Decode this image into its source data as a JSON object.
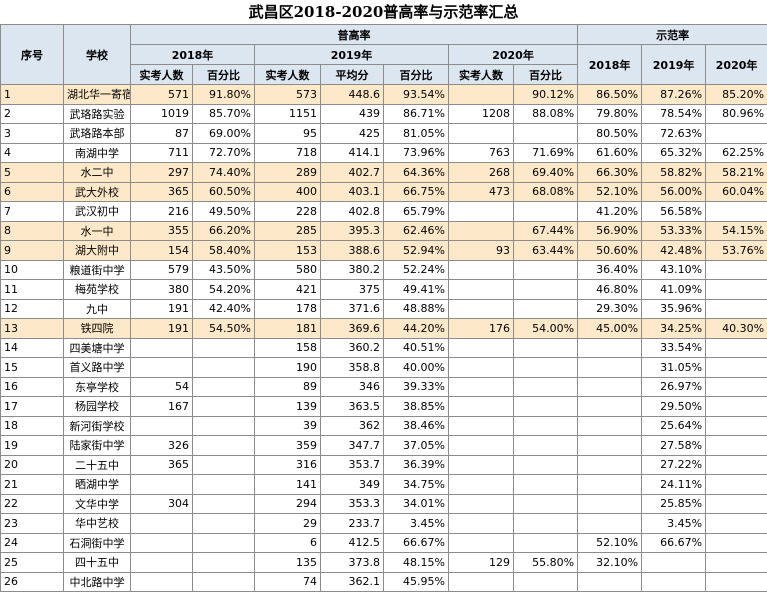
{
  "title": "武昌区2018-2020普高率与示范率汇总",
  "header": {
    "seq": "序号",
    "school": "学校",
    "group1": "普高率",
    "group2": "示范率",
    "years": [
      "2018年",
      "2019年",
      "2020年"
    ],
    "demo_years": [
      "2018年",
      "2019年",
      "2020年"
    ],
    "sub": [
      "实考人数",
      "百分比",
      "实考人数",
      "平均分",
      "百分比",
      "实考人数",
      "百分比"
    ]
  },
  "table": {
    "highlight_color": "#fde9c9",
    "highlight_rows": [
      0,
      4,
      5,
      7,
      8,
      12
    ],
    "rows": [
      [
        "1",
        "湖北华一寄宿",
        "571",
        "91.80%",
        "573",
        "448.6",
        "93.54%",
        null,
        "90.12%",
        "86.50%",
        "87.26%",
        "85.20%"
      ],
      [
        "2",
        "武珞路实验",
        "1019",
        "85.70%",
        "1151",
        "439",
        "86.71%",
        "1208",
        "88.08%",
        "79.80%",
        "78.54%",
        "80.96%"
      ],
      [
        "3",
        "武珞路本部",
        "87",
        "69.00%",
        "95",
        "425",
        "81.05%",
        null,
        null,
        "80.50%",
        "72.63%",
        null
      ],
      [
        "4",
        "南湖中学",
        "711",
        "72.70%",
        "718",
        "414.1",
        "73.96%",
        "763",
        "71.69%",
        "61.60%",
        "65.32%",
        "62.25%"
      ],
      [
        "5",
        "水二中",
        "297",
        "74.40%",
        "289",
        "402.7",
        "64.36%",
        "268",
        "69.40%",
        "66.30%",
        "58.82%",
        "58.21%"
      ],
      [
        "6",
        "武大外校",
        "365",
        "60.50%",
        "400",
        "403.1",
        "66.75%",
        "473",
        "68.08%",
        "52.10%",
        "56.00%",
        "60.04%"
      ],
      [
        "7",
        "武汉初中",
        "216",
        "49.50%",
        "228",
        "402.8",
        "65.79%",
        null,
        null,
        "41.20%",
        "56.58%",
        null
      ],
      [
        "8",
        "水一中",
        "355",
        "66.20%",
        "285",
        "395.3",
        "62.46%",
        null,
        "67.44%",
        "56.90%",
        "53.33%",
        "54.15%"
      ],
      [
        "9",
        "湖大附中",
        "154",
        "58.40%",
        "153",
        "388.6",
        "52.94%",
        "93",
        "63.44%",
        "50.60%",
        "42.48%",
        "53.76%"
      ],
      [
        "10",
        "粮道街中学",
        "579",
        "43.50%",
        "580",
        "380.2",
        "52.24%",
        null,
        null,
        "36.40%",
        "43.10%",
        null
      ],
      [
        "11",
        "梅苑学校",
        "380",
        "54.20%",
        "421",
        "375",
        "49.41%",
        null,
        null,
        "46.80%",
        "41.09%",
        null
      ],
      [
        "12",
        "九中",
        "191",
        "42.40%",
        "178",
        "371.6",
        "48.88%",
        null,
        null,
        "29.30%",
        "35.96%",
        null
      ],
      [
        "13",
        "铁四院",
        "191",
        "54.50%",
        "181",
        "369.6",
        "44.20%",
        "176",
        "54.00%",
        "45.00%",
        "34.25%",
        "40.30%"
      ],
      [
        "14",
        "四美塘中学",
        null,
        null,
        "158",
        "360.2",
        "40.51%",
        null,
        null,
        null,
        "33.54%",
        null
      ],
      [
        "15",
        "首义路中学",
        null,
        null,
        "190",
        "358.8",
        "40.00%",
        null,
        null,
        null,
        "31.05%",
        null
      ],
      [
        "16",
        "东亭学校",
        "54",
        null,
        "89",
        "346",
        "39.33%",
        null,
        null,
        null,
        "26.97%",
        null
      ],
      [
        "17",
        "杨园学校",
        "167",
        null,
        "139",
        "363.5",
        "38.85%",
        null,
        null,
        null,
        "29.50%",
        null
      ],
      [
        "18",
        "新河街学校",
        null,
        null,
        "39",
        "362",
        "38.46%",
        null,
        null,
        null,
        "25.64%",
        null
      ],
      [
        "19",
        "陆家街中学",
        "326",
        null,
        "359",
        "347.7",
        "37.05%",
        null,
        null,
        null,
        "27.58%",
        null
      ],
      [
        "20",
        "二十五中",
        "365",
        null,
        "316",
        "353.7",
        "36.39%",
        null,
        null,
        null,
        "27.22%",
        null
      ],
      [
        "21",
        "晒湖中学",
        null,
        null,
        "141",
        "349",
        "34.75%",
        null,
        null,
        null,
        "24.11%",
        null
      ],
      [
        "22",
        "文华中学",
        "304",
        null,
        "294",
        "353.3",
        "34.01%",
        null,
        null,
        null,
        "25.85%",
        null
      ],
      [
        "23",
        "华中艺校",
        null,
        null,
        "29",
        "233.7",
        "3.45%",
        null,
        null,
        null,
        "3.45%",
        null
      ],
      [
        "24",
        "石洞街中学",
        null,
        null,
        "6",
        "412.5",
        "66.67%",
        null,
        null,
        "52.10%",
        "66.67%",
        null
      ],
      [
        "25",
        "四十五中",
        null,
        null,
        "135",
        "373.8",
        "48.15%",
        "129",
        "55.80%",
        "32.10%",
        null,
        null
      ],
      [
        "26",
        "中北路中学",
        null,
        null,
        "74",
        "362.1",
        "45.95%",
        null,
        null,
        null,
        null,
        null
      ]
    ]
  }
}
